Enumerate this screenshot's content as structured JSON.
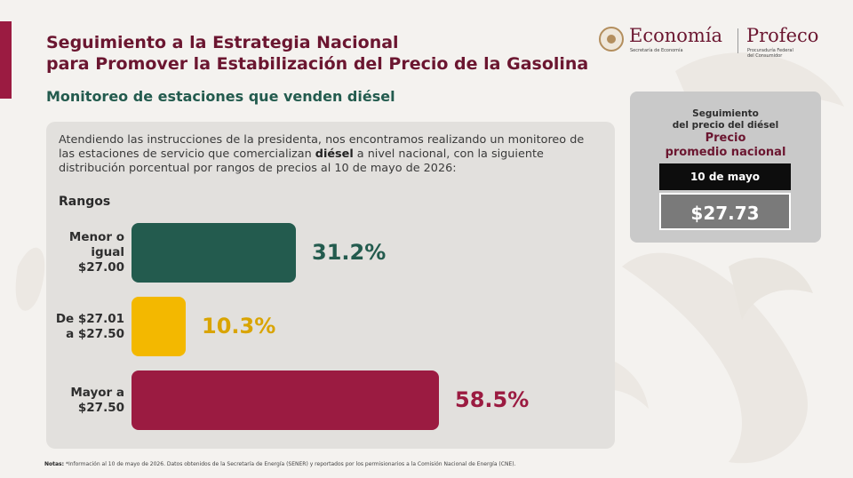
{
  "header": {
    "title_line1": "Seguimiento a la Estrategia Nacional",
    "title_line2": "para Promover la Estabilización del Precio de la Gasolina",
    "subtitle": "Monitoreo de estaciones que venden diésel"
  },
  "logos": {
    "economia": "Economía",
    "economia_sub": "Secretaría de Economía",
    "profeco": "Profeco",
    "profeco_sub_1": "Procuraduría Federal",
    "profeco_sub_2": "del Consumidor"
  },
  "intro": {
    "before": "Atendiendo las instrucciones de la presidenta, nos encontramos realizando un monitoreo de las estaciones de servicio que comercializan ",
    "bold": "diésel",
    "after": " a nivel nacional, con la siguiente distribución porcentual por rangos de precios al 10 de mayo de 2026:"
  },
  "chart_data": {
    "type": "bar",
    "title": "Rangos",
    "categories": [
      "Menor o igual $27.00",
      "De $27.01 a $27.50",
      "Mayor a $27.50"
    ],
    "category_lines": [
      [
        "Menor o",
        "igual",
        "$27.00"
      ],
      [
        "De $27.01",
        "a $27.50"
      ],
      [
        "Mayor a",
        "$27.50"
      ]
    ],
    "values": [
      31.2,
      10.3,
      58.5
    ],
    "value_labels": [
      "31.2%",
      "10.3%",
      "58.5%"
    ],
    "colors": [
      "#235b4e",
      "#f3b800",
      "#9b1b41"
    ],
    "label_colors": [
      "#235b4e",
      "#d9a400",
      "#9b1b41"
    ],
    "orientation": "horizontal",
    "grid": false
  },
  "side_panel": {
    "line1": "Seguimiento",
    "line2": "del precio del diésel",
    "line3": "Precio",
    "line4": "promedio nacional",
    "date": "10 de mayo",
    "price": "$27.73"
  },
  "notes": {
    "label": "Notas:",
    "text": "*Información al 10 de mayo de 2026. Datos obtenidos de la Secretaría de Energía (SENER) y reportados por los permisionarios a la Comisión Nacional de Energía (CNE)."
  }
}
